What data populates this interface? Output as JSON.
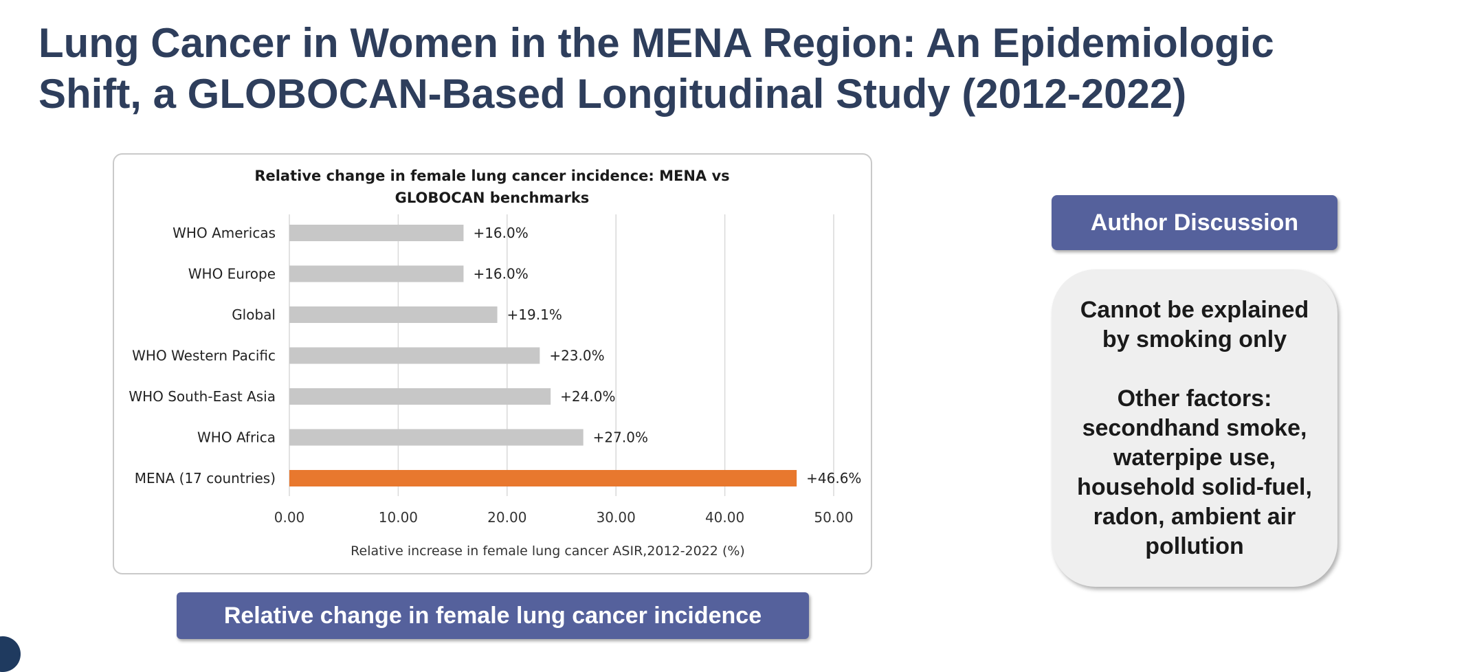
{
  "slide": {
    "title": "Lung Cancer in Women in the MENA Region: An Epidemiologic Shift, a GLOBOCAN-Based Longitudinal Study (2012-2022)",
    "chart_caption": "Relative change in female lung cancer incidence"
  },
  "discussion": {
    "header": "Author Discussion",
    "line1": "Cannot be explained",
    "line2": "by smoking only",
    "line3": "Other factors:",
    "line4": "secondhand smoke,",
    "line5": "waterpipe use,",
    "line6": "household solid-fuel,",
    "line7": "radon, ambient air",
    "line8": "pollution"
  },
  "chart_data": {
    "type": "bar",
    "orientation": "horizontal",
    "title": "Relative change in female lung cancer incidence: MENA vs GLOBOCAN benchmarks",
    "xlabel": "Relative increase in female lung cancer ASIR,2012-2022 (%)",
    "ylabel": "",
    "xlim": [
      0,
      50
    ],
    "ticks": [
      "0.00",
      "10.00",
      "20.00",
      "30.00",
      "40.00",
      "50.00"
    ],
    "grid": "vertical",
    "legend": "none",
    "categories": [
      "WHO Americas",
      "WHO Europe",
      "Global",
      "WHO Western Pacific",
      "WHO South-East Asia",
      "WHO Africa",
      "MENA (17 countries)"
    ],
    "values": [
      16.0,
      16.0,
      19.1,
      23.0,
      24.0,
      27.0,
      46.6
    ],
    "data_labels": [
      "+16.0%",
      "+16.0%",
      "+19.1%",
      "+23.0%",
      "+24.0%",
      "+27.0%",
      "+46.6%"
    ],
    "colors": [
      "#c7c7c7",
      "#c7c7c7",
      "#c7c7c7",
      "#c7c7c7",
      "#c7c7c7",
      "#c7c7c7",
      "#e8782e"
    ]
  }
}
